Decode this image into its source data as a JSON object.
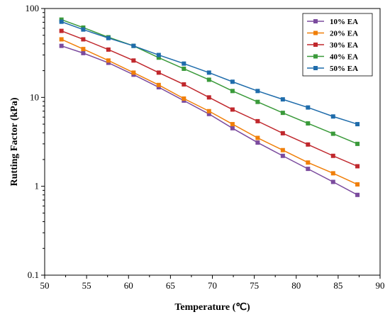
{
  "chart_data": {
    "type": "line",
    "xlabel": "Temperature (℃)",
    "ylabel": "Rutting Factor (kPa)",
    "xlim": [
      50,
      90
    ],
    "ylim": [
      0.1,
      100
    ],
    "yscale": "log",
    "grid": false,
    "legend_position": "top-right",
    "x_ticks": [
      "50",
      "55",
      "60",
      "65",
      "70",
      "75",
      "80",
      "85",
      "90"
    ],
    "y_ticks": [
      "0.1",
      "1",
      "10",
      "100"
    ],
    "x": [
      52,
      54.6,
      57.6,
      60.6,
      63.6,
      66.6,
      69.6,
      72.4,
      75.4,
      78.4,
      81.4,
      84.4,
      87.3
    ],
    "series": [
      {
        "name": "10% EA",
        "color": "#7b4b9e",
        "values": [
          38,
          31.5,
          24.5,
          18,
          13,
          9.2,
          6.5,
          4.5,
          3.1,
          2.2,
          1.57,
          1.12,
          0.8
        ]
      },
      {
        "name": "20% EA",
        "color": "#f07f09",
        "values": [
          45,
          35,
          26,
          19,
          13.8,
          9.7,
          7,
          5,
          3.5,
          2.55,
          1.85,
          1.4,
          1.05
        ]
      },
      {
        "name": "30% EA",
        "color": "#c0282d",
        "values": [
          56,
          45,
          34.5,
          26,
          19,
          14,
          10,
          7.3,
          5.4,
          3.95,
          2.95,
          2.2,
          1.68
        ]
      },
      {
        "name": "40% EA",
        "color": "#3a9a3a",
        "values": [
          75,
          61,
          47.5,
          38,
          28,
          21,
          15.8,
          11.8,
          8.9,
          6.7,
          5.1,
          3.9,
          3.0
        ]
      },
      {
        "name": "50% EA",
        "color": "#1f6cab",
        "values": [
          71,
          58,
          46.5,
          38,
          30,
          24,
          19,
          15,
          11.8,
          9.5,
          7.7,
          6.1,
          5.0
        ]
      }
    ]
  }
}
